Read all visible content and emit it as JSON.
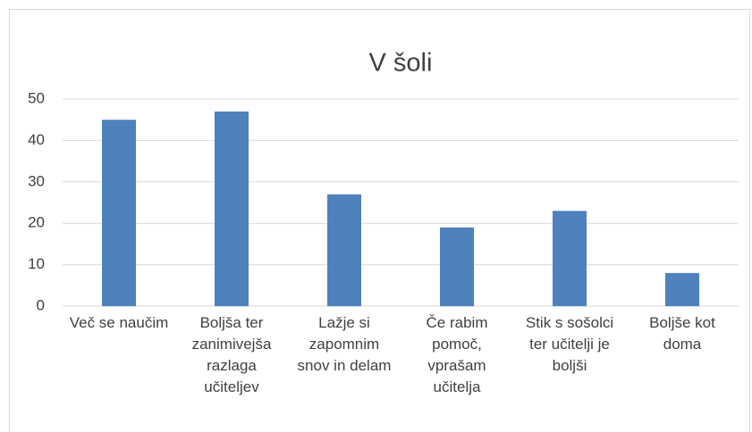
{
  "chart_data": {
    "type": "bar",
    "title": "V šoli",
    "categories": [
      "Več se naučim",
      "Boljša ter zanimivejša razlaga učiteljev",
      "Lažje si zapomnim snov in delam",
      "Če rabim pomoč, vprašam učitelja",
      "Stik s sošolci ter učitelji je boljši",
      "Boljše kot doma"
    ],
    "values": [
      45,
      47,
      27,
      19,
      23,
      8
    ],
    "color": "#4f81bd",
    "ylim": [
      0,
      50
    ],
    "yticks": [
      0,
      10,
      20,
      30,
      40,
      50
    ],
    "grid": true
  }
}
